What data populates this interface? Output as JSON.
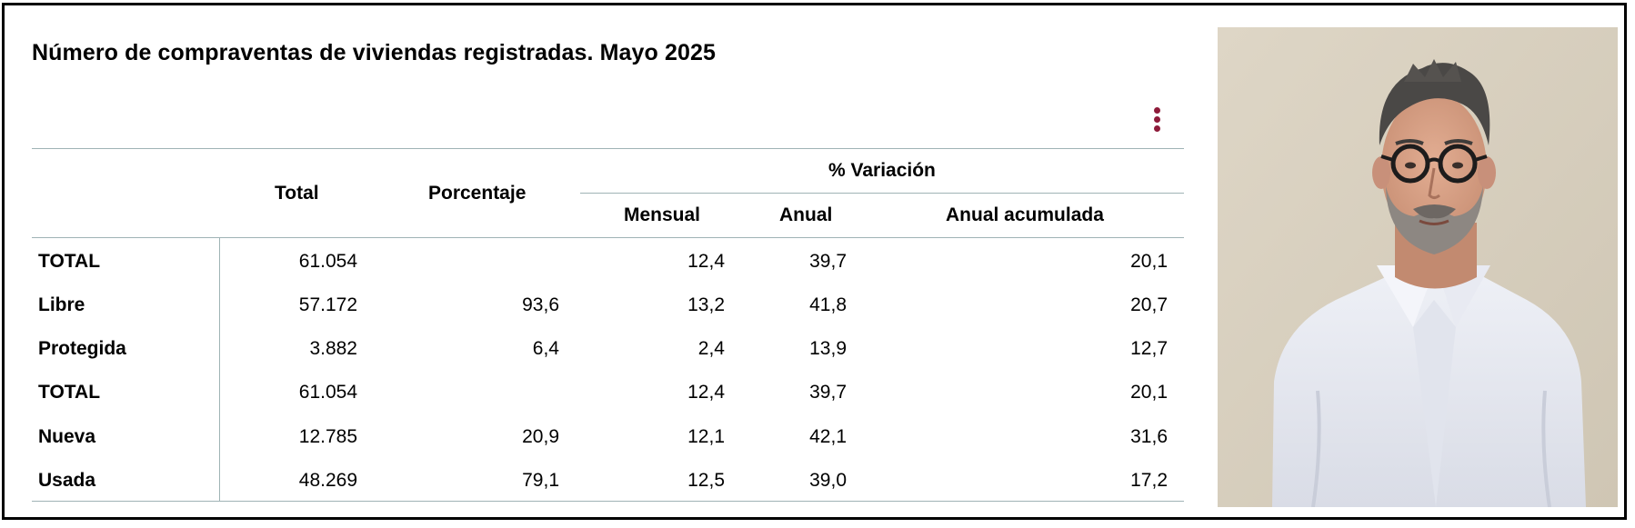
{
  "title": "Número de compraventas de viviendas registradas. Mayo 2025",
  "menu_icon": "vertical-dots-icon",
  "colors": {
    "accent": "#8e1b3a",
    "rule": "#9fb3b5",
    "border": "#000000"
  },
  "table": {
    "headers": {
      "total": "Total",
      "porcentaje": "Porcentaje",
      "variacion_group": "% Variación",
      "mensual": "Mensual",
      "anual": "Anual",
      "anual_acumulada": "Anual acumulada"
    },
    "rows": [
      {
        "label": "TOTAL",
        "total": "61.054",
        "porcentaje": "",
        "mensual": "12,4",
        "anual": "39,7",
        "anual_acumulada": "20,1"
      },
      {
        "label": "Libre",
        "total": "57.172",
        "porcentaje": "93,6",
        "mensual": "13,2",
        "anual": "41,8",
        "anual_acumulada": "20,7"
      },
      {
        "label": "Protegida",
        "total": "3.882",
        "porcentaje": "6,4",
        "mensual": "2,4",
        "anual": "13,9",
        "anual_acumulada": "12,7"
      },
      {
        "label": "TOTAL",
        "total": "61.054",
        "porcentaje": "",
        "mensual": "12,4",
        "anual": "39,7",
        "anual_acumulada": "20,1"
      },
      {
        "label": "Nueva",
        "total": "12.785",
        "porcentaje": "20,9",
        "mensual": "12,1",
        "anual": "42,1",
        "anual_acumulada": "31,6"
      },
      {
        "label": "Usada",
        "total": "48.269",
        "porcentaje": "79,1",
        "mensual": "12,5",
        "anual": "39,0",
        "anual_acumulada": "17,2"
      }
    ]
  },
  "photo": {
    "subject": "portrait-photo"
  }
}
